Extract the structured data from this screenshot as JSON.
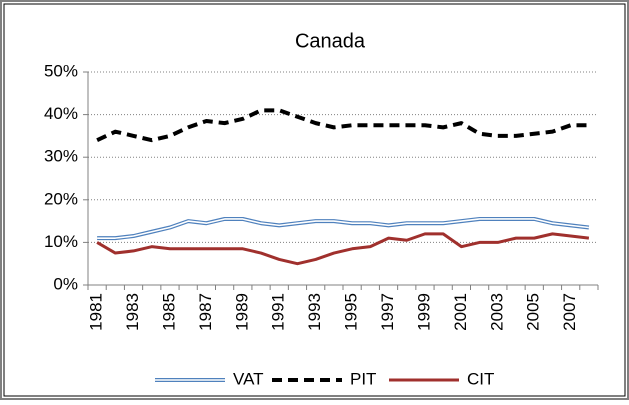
{
  "chart_data": {
    "type": "line",
    "title": "Canada",
    "categories": [
      "1981",
      null,
      "1983",
      null,
      "1985",
      null,
      "1987",
      null,
      "1989",
      null,
      "1991",
      null,
      "1993",
      null,
      "1995",
      null,
      "1997",
      null,
      "1999",
      null,
      "2001",
      null,
      "2003",
      null,
      "2005",
      null,
      "2007",
      null
    ],
    "series": [
      {
        "name": "VAT",
        "color": "#4f81bd",
        "line_style": "double",
        "values": [
          11,
          11,
          11.5,
          12.5,
          13.5,
          15,
          14.5,
          15.5,
          15.5,
          14.5,
          14,
          14.5,
          15,
          15,
          14.5,
          14.5,
          14,
          14.5,
          14.5,
          14.5,
          15,
          15.5,
          15.5,
          15.5,
          15.5,
          14.5,
          14,
          13.5
        ]
      },
      {
        "name": "PIT",
        "color": "#000000",
        "line_style": "dashed",
        "values": [
          34,
          36,
          35,
          34,
          35,
          37,
          38.5,
          38,
          39,
          41,
          41,
          39.5,
          38,
          37,
          37.5,
          37.5,
          37.5,
          37.5,
          37.5,
          37,
          38,
          35.5,
          35,
          35,
          35.5,
          36,
          37.5,
          37.5
        ]
      },
      {
        "name": "CIT",
        "color": "#a0302d",
        "line_style": "solid",
        "values": [
          10,
          7.5,
          8,
          9,
          8.5,
          8.5,
          8.5,
          8.5,
          8.5,
          7.5,
          6,
          5,
          6,
          7.5,
          8.5,
          9,
          11,
          10.5,
          12,
          12,
          9,
          10,
          10,
          11,
          11,
          12,
          11.5,
          11
        ]
      }
    ],
    "ylim": [
      0,
      50
    ],
    "yticks": [
      {
        "value": 0,
        "label": "0%"
      },
      {
        "value": 10,
        "label": "10%"
      },
      {
        "value": 20,
        "label": "20%"
      },
      {
        "value": 30,
        "label": "30%"
      },
      {
        "value": 40,
        "label": "40%"
      },
      {
        "value": 50,
        "label": "50%"
      }
    ],
    "grid": true,
    "legend": "bottom"
  }
}
